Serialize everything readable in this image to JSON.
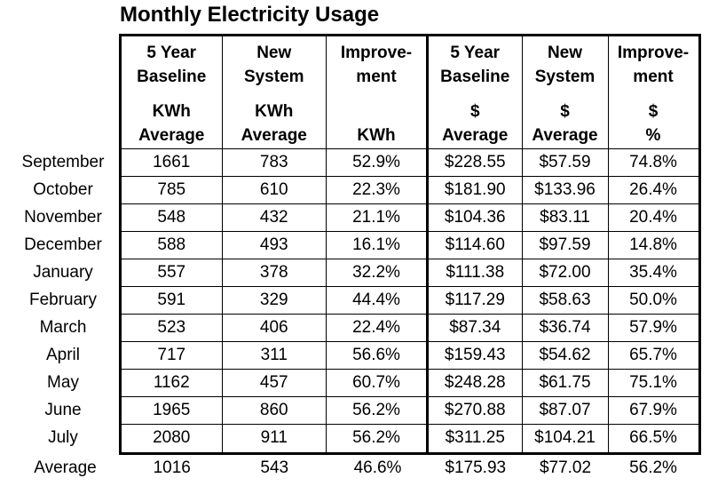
{
  "chart_data": {
    "type": "table",
    "title": "Monthly Electricity Usage",
    "layout": {
      "grid": "all-borders",
      "thick_divider_after_column": 3,
      "legend_position": "none"
    },
    "colors": {
      "text": "#000000",
      "background": "#ffffff",
      "border": "#000000"
    },
    "columns": [
      {
        "name": "baseline-kwh-average",
        "line1": "5 Year",
        "line2": "Baseline",
        "line3": "KWh",
        "line4": "Average"
      },
      {
        "name": "new-system-kwh-average",
        "line1": "New",
        "line2": "System",
        "line3": "KWh",
        "line4": "Average"
      },
      {
        "name": "improvement-kwh",
        "line1": "Improve-",
        "line2": "ment",
        "line3": "",
        "line4": "KWh"
      },
      {
        "name": "baseline-dollar-average",
        "line1": "5 Year",
        "line2": "Baseline",
        "line3": "$",
        "line4": "Average"
      },
      {
        "name": "new-system-dollar-average",
        "line1": "New",
        "line2": "System",
        "line3": "$",
        "line4": "Average"
      },
      {
        "name": "improvement-dollar-pct",
        "line1": "Improve-",
        "line2": "ment",
        "line3": "$",
        "line4": "%"
      }
    ],
    "rows": [
      {
        "month": "September",
        "cells": [
          "1661",
          "783",
          "52.9%",
          "$228.55",
          "$57.59",
          "74.8%"
        ]
      },
      {
        "month": "October",
        "cells": [
          "785",
          "610",
          "22.3%",
          "$181.90",
          "$133.96",
          "26.4%"
        ]
      },
      {
        "month": "November",
        "cells": [
          "548",
          "432",
          "21.1%",
          "$104.36",
          "$83.11",
          "20.4%"
        ]
      },
      {
        "month": "December",
        "cells": [
          "588",
          "493",
          "16.1%",
          "$114.60",
          "$97.59",
          "14.8%"
        ]
      },
      {
        "month": "January",
        "cells": [
          "557",
          "378",
          "32.2%",
          "$111.38",
          "$72.00",
          "35.4%"
        ]
      },
      {
        "month": "February",
        "cells": [
          "591",
          "329",
          "44.4%",
          "$117.29",
          "$58.63",
          "50.0%"
        ]
      },
      {
        "month": "March",
        "cells": [
          "523",
          "406",
          "22.4%",
          "$87.34",
          "$36.74",
          "57.9%"
        ]
      },
      {
        "month": "April",
        "cells": [
          "717",
          "311",
          "56.6%",
          "$159.43",
          "$54.62",
          "65.7%"
        ]
      },
      {
        "month": "May",
        "cells": [
          "1162",
          "457",
          "60.7%",
          "$248.28",
          "$61.75",
          "75.1%"
        ]
      },
      {
        "month": "June",
        "cells": [
          "1965",
          "860",
          "56.2%",
          "$270.88",
          "$87.07",
          "67.9%"
        ]
      },
      {
        "month": "July",
        "cells": [
          "2080",
          "911",
          "56.2%",
          "$311.25",
          "$104.21",
          "66.5%"
        ]
      }
    ],
    "average": {
      "label": "Average",
      "cells": [
        "1016",
        "543",
        "46.6%",
        "$175.93",
        "$77.02",
        "56.2%"
      ]
    }
  }
}
